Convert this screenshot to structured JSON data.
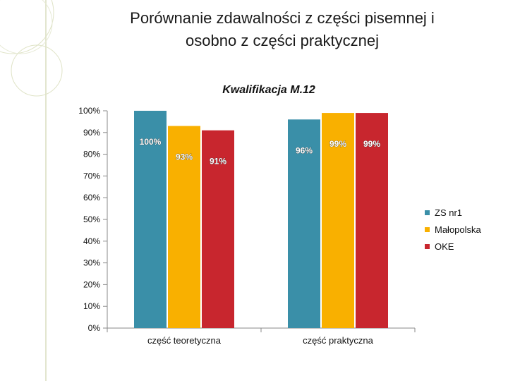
{
  "slide": {
    "title_line1": "Porównanie zdawalności z części pisemnej i",
    "title_line2": "osobno z części praktycznej"
  },
  "chart_data": {
    "type": "bar",
    "title": "Kwalifikacja M.12",
    "categories": [
      "część teoretyczna",
      "część praktyczna"
    ],
    "series": [
      {
        "name": "ZS nr1",
        "color": "#3a8fa8",
        "values": [
          100,
          96
        ],
        "labels": [
          "100%",
          "96%"
        ]
      },
      {
        "name": "Małopolska",
        "color": "#f9b000",
        "values": [
          93,
          99
        ],
        "labels": [
          "93%",
          "99%"
        ]
      },
      {
        "name": "OKE",
        "color": "#c8262e",
        "values": [
          91,
          99
        ],
        "labels": [
          "91%",
          "99%"
        ]
      }
    ],
    "y_ticks": [
      "0%",
      "10%",
      "20%",
      "30%",
      "40%",
      "50%",
      "60%",
      "70%",
      "80%",
      "90%",
      "100%"
    ],
    "ylim": [
      0,
      100
    ],
    "grid": false,
    "legend_position": "right"
  }
}
